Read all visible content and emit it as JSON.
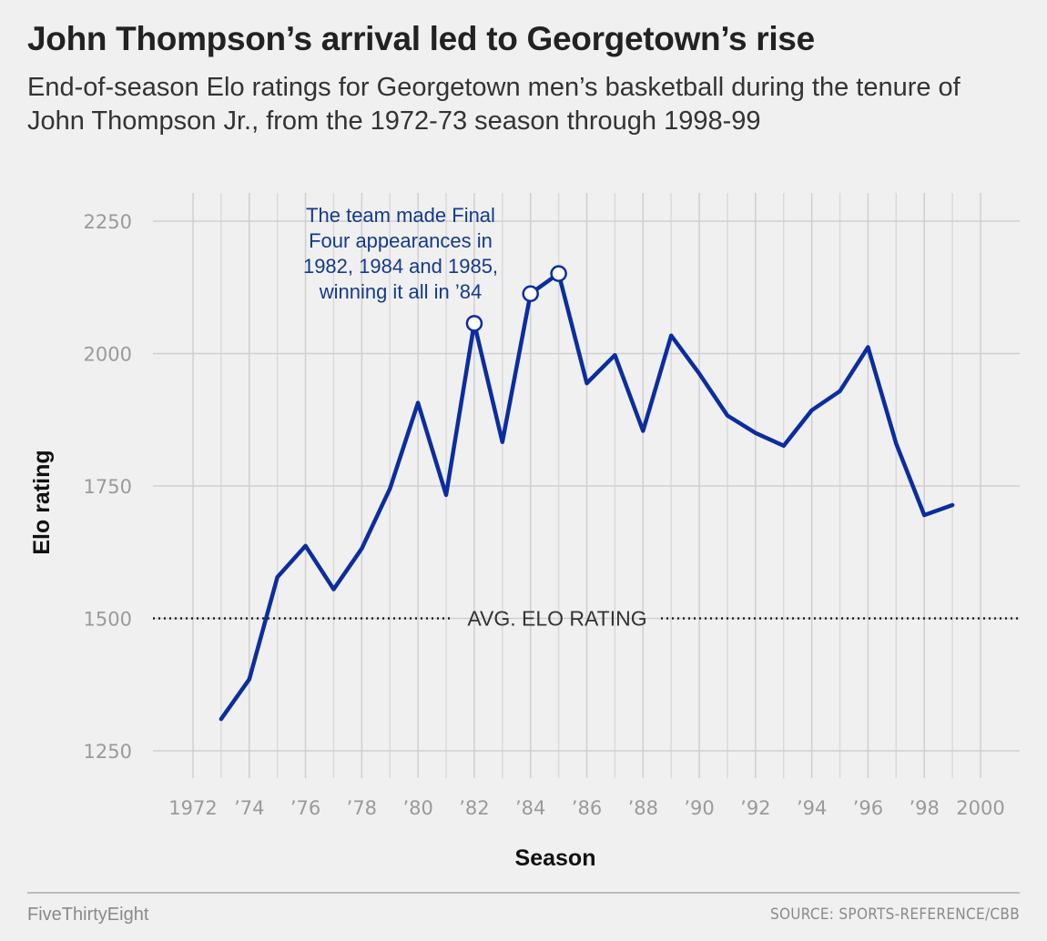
{
  "header": {
    "title": "John Thompson’s arrival led to Georgetown’s rise",
    "subtitle": "End-of-season Elo ratings for Georgetown men’s basketball during the tenure of John Thompson Jr., from the 1972-73 season through 1998-99"
  },
  "footer": {
    "brand": "FiveThirtyEight",
    "source": "SOURCE: SPORTS-REFERENCE/CBB"
  },
  "chart_data": {
    "type": "line",
    "title": "John Thompson’s arrival led to Georgetown’s rise",
    "subtitle": "End-of-season Elo ratings for Georgetown men’s basketball during the tenure of John Thompson Jr., from the 1972-73 season through 1998-99",
    "xlabel": "Season",
    "ylabel": "Elo rating",
    "xlim": [
      1972,
      2000
    ],
    "ylim": [
      1250,
      2250
    ],
    "x_ticks": [
      1972,
      1974,
      1976,
      1978,
      1980,
      1982,
      1984,
      1986,
      1988,
      1990,
      1992,
      1994,
      1996,
      1998,
      2000
    ],
    "x_tick_labels": [
      "1972",
      "’74",
      "’76",
      "’78",
      "’80",
      "’82",
      "’84",
      "’86",
      "’88",
      "’90",
      "’92",
      "’94",
      "’96",
      "’98",
      "2000"
    ],
    "y_ticks": [
      1250,
      1500,
      1750,
      2000,
      2250
    ],
    "y_tick_labels": [
      "1250",
      "1500",
      "1750",
      "2000",
      "2250"
    ],
    "grid": true,
    "series_color": "#0b2d9e",
    "series": [
      {
        "x": [
          1973,
          1974,
          1975,
          1976,
          1977,
          1978,
          1979,
          1980,
          1981,
          1982,
          1983,
          1984,
          1985,
          1986,
          1987,
          1988,
          1989,
          1990,
          1991,
          1992,
          1993,
          1994,
          1995,
          1996,
          1997,
          1998,
          1999
        ],
        "values": [
          1310,
          1385,
          1578,
          1637,
          1555,
          1632,
          1745,
          1907,
          1733,
          2057,
          1833,
          2113,
          2151,
          1944,
          1997,
          1854,
          2034,
          1962,
          1883,
          1850,
          1826,
          1893,
          1929,
          2012,
          1830,
          1695,
          1714
        ]
      }
    ],
    "highlighted_points": [
      1982,
      1984,
      1985
    ],
    "reference_line": {
      "value": 1500,
      "label": "AVG. ELO RATING"
    },
    "annotation": {
      "lines": [
        "The team made Final",
        "Four appearances in",
        "1982, 1984 and 1985,",
        "winning it all in ’84"
      ]
    }
  }
}
